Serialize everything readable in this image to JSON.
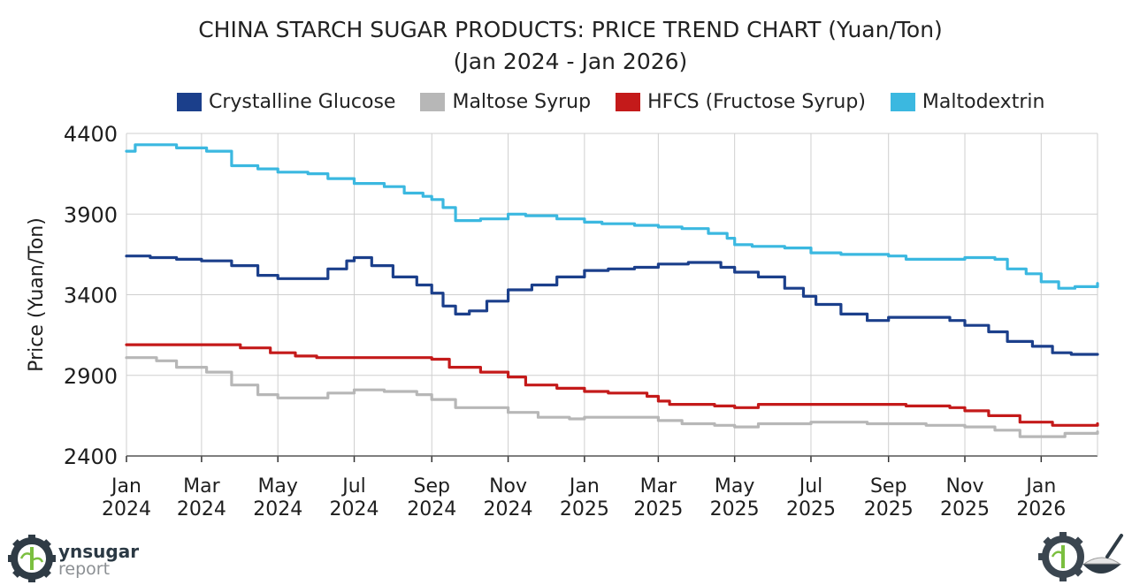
{
  "chart_data": {
    "type": "line",
    "title": "CHINA STARCH SUGAR PRODUCTS: PRICE TREND CHART (Yuan/Ton)",
    "subtitle": "(Jan 2024 - Jan 2026)",
    "xlabel": "",
    "ylabel": "Price (Yuan/Ton)",
    "ylim": [
      2400,
      4400
    ],
    "yticks": [
      2400,
      2900,
      3400,
      3900,
      4400
    ],
    "xlim": [
      "2024-01-01",
      "2026-02-15"
    ],
    "xticks": [
      {
        "date": "2024-01-01",
        "month": "Jan",
        "year": "2024"
      },
      {
        "date": "2024-03-01",
        "month": "Mar",
        "year": "2024"
      },
      {
        "date": "2024-05-01",
        "month": "May",
        "year": "2024"
      },
      {
        "date": "2024-07-01",
        "month": "Jul",
        "year": "2024"
      },
      {
        "date": "2024-09-01",
        "month": "Sep",
        "year": "2024"
      },
      {
        "date": "2024-11-01",
        "month": "Nov",
        "year": "2024"
      },
      {
        "date": "2025-01-01",
        "month": "Jan",
        "year": "2025"
      },
      {
        "date": "2025-03-01",
        "month": "Mar",
        "year": "2025"
      },
      {
        "date": "2025-05-01",
        "month": "May",
        "year": "2025"
      },
      {
        "date": "2025-07-01",
        "month": "Jul",
        "year": "2025"
      },
      {
        "date": "2025-09-01",
        "month": "Sep",
        "year": "2025"
      },
      {
        "date": "2025-11-01",
        "month": "Nov",
        "year": "2025"
      },
      {
        "date": "2026-01-01",
        "month": "Jan",
        "year": "2026"
      }
    ],
    "grid": true,
    "legend_position": "top",
    "series": [
      {
        "name": "Crystalline Glucose",
        "color": "#1b3f8b",
        "points": [
          [
            "2024-01-01",
            3640
          ],
          [
            "2024-01-20",
            3630
          ],
          [
            "2024-02-10",
            3620
          ],
          [
            "2024-03-01",
            3610
          ],
          [
            "2024-03-25",
            3580
          ],
          [
            "2024-04-15",
            3520
          ],
          [
            "2024-05-01",
            3500
          ],
          [
            "2024-05-25",
            3500
          ],
          [
            "2024-06-10",
            3560
          ],
          [
            "2024-06-25",
            3610
          ],
          [
            "2024-07-01",
            3630
          ],
          [
            "2024-07-15",
            3580
          ],
          [
            "2024-08-01",
            3510
          ],
          [
            "2024-08-20",
            3460
          ],
          [
            "2024-09-01",
            3410
          ],
          [
            "2024-09-10",
            3330
          ],
          [
            "2024-09-20",
            3280
          ],
          [
            "2024-10-01",
            3300
          ],
          [
            "2024-10-15",
            3360
          ],
          [
            "2024-11-01",
            3430
          ],
          [
            "2024-11-20",
            3460
          ],
          [
            "2024-12-10",
            3510
          ],
          [
            "2025-01-01",
            3550
          ],
          [
            "2025-01-20",
            3560
          ],
          [
            "2025-02-10",
            3570
          ],
          [
            "2025-03-01",
            3590
          ],
          [
            "2025-03-25",
            3600
          ],
          [
            "2025-04-20",
            3570
          ],
          [
            "2025-05-01",
            3540
          ],
          [
            "2025-05-20",
            3510
          ],
          [
            "2025-06-10",
            3440
          ],
          [
            "2025-06-25",
            3390
          ],
          [
            "2025-07-05",
            3340
          ],
          [
            "2025-07-25",
            3280
          ],
          [
            "2025-08-15",
            3240
          ],
          [
            "2025-09-01",
            3260
          ],
          [
            "2025-09-25",
            3260
          ],
          [
            "2025-10-20",
            3240
          ],
          [
            "2025-11-01",
            3210
          ],
          [
            "2025-11-20",
            3170
          ],
          [
            "2025-12-05",
            3110
          ],
          [
            "2025-12-25",
            3080
          ],
          [
            "2026-01-10",
            3040
          ],
          [
            "2026-01-25",
            3030
          ],
          [
            "2026-02-15",
            3030
          ]
        ]
      },
      {
        "name": "Maltose Syrup",
        "color": "#b7b7b7",
        "points": [
          [
            "2024-01-01",
            3010
          ],
          [
            "2024-01-25",
            2990
          ],
          [
            "2024-02-10",
            2950
          ],
          [
            "2024-03-05",
            2920
          ],
          [
            "2024-03-25",
            2840
          ],
          [
            "2024-04-15",
            2780
          ],
          [
            "2024-05-01",
            2760
          ],
          [
            "2024-05-25",
            2760
          ],
          [
            "2024-06-10",
            2790
          ],
          [
            "2024-07-01",
            2810
          ],
          [
            "2024-07-25",
            2800
          ],
          [
            "2024-08-20",
            2780
          ],
          [
            "2024-09-01",
            2750
          ],
          [
            "2024-09-20",
            2700
          ],
          [
            "2024-10-10",
            2700
          ],
          [
            "2024-11-01",
            2670
          ],
          [
            "2024-11-25",
            2640
          ],
          [
            "2024-12-20",
            2630
          ],
          [
            "2025-01-01",
            2640
          ],
          [
            "2025-02-10",
            2640
          ],
          [
            "2025-03-01",
            2620
          ],
          [
            "2025-03-20",
            2600
          ],
          [
            "2025-04-15",
            2590
          ],
          [
            "2025-05-01",
            2580
          ],
          [
            "2025-05-20",
            2600
          ],
          [
            "2025-06-20",
            2600
          ],
          [
            "2025-07-01",
            2610
          ],
          [
            "2025-08-15",
            2600
          ],
          [
            "2025-09-01",
            2600
          ],
          [
            "2025-10-01",
            2590
          ],
          [
            "2025-11-01",
            2580
          ],
          [
            "2025-11-25",
            2560
          ],
          [
            "2025-12-15",
            2520
          ],
          [
            "2026-01-10",
            2520
          ],
          [
            "2026-01-20",
            2540
          ],
          [
            "2026-02-15",
            2550
          ]
        ]
      },
      {
        "name": "HFCS (Fructose Syrup)",
        "color": "#c41a1a",
        "points": [
          [
            "2024-01-01",
            3090
          ],
          [
            "2024-02-10",
            3090
          ],
          [
            "2024-03-01",
            3090
          ],
          [
            "2024-04-01",
            3070
          ],
          [
            "2024-04-25",
            3040
          ],
          [
            "2024-05-15",
            3020
          ],
          [
            "2024-06-01",
            3010
          ],
          [
            "2024-07-01",
            3010
          ],
          [
            "2024-08-01",
            3010
          ],
          [
            "2024-09-01",
            3000
          ],
          [
            "2024-09-15",
            2950
          ],
          [
            "2024-10-10",
            2920
          ],
          [
            "2024-11-01",
            2890
          ],
          [
            "2024-11-15",
            2840
          ],
          [
            "2024-12-10",
            2820
          ],
          [
            "2025-01-01",
            2800
          ],
          [
            "2025-01-20",
            2790
          ],
          [
            "2025-02-20",
            2770
          ],
          [
            "2025-03-01",
            2740
          ],
          [
            "2025-03-10",
            2720
          ],
          [
            "2025-04-15",
            2710
          ],
          [
            "2025-05-01",
            2700
          ],
          [
            "2025-05-20",
            2720
          ],
          [
            "2025-07-01",
            2720
          ],
          [
            "2025-09-01",
            2720
          ],
          [
            "2025-09-15",
            2710
          ],
          [
            "2025-10-20",
            2700
          ],
          [
            "2025-11-01",
            2680
          ],
          [
            "2025-11-20",
            2650
          ],
          [
            "2025-12-15",
            2610
          ],
          [
            "2026-01-10",
            2590
          ],
          [
            "2026-02-15",
            2600
          ]
        ]
      },
      {
        "name": "Maltodextrin",
        "color": "#3bb8e0",
        "points": [
          [
            "2024-01-01",
            4290
          ],
          [
            "2024-01-08",
            4330
          ],
          [
            "2024-02-10",
            4310
          ],
          [
            "2024-03-05",
            4290
          ],
          [
            "2024-03-25",
            4200
          ],
          [
            "2024-04-15",
            4180
          ],
          [
            "2024-05-01",
            4160
          ],
          [
            "2024-05-25",
            4150
          ],
          [
            "2024-06-10",
            4120
          ],
          [
            "2024-07-01",
            4090
          ],
          [
            "2024-07-25",
            4070
          ],
          [
            "2024-08-10",
            4030
          ],
          [
            "2024-08-25",
            4010
          ],
          [
            "2024-09-01",
            3990
          ],
          [
            "2024-09-10",
            3940
          ],
          [
            "2024-09-20",
            3860
          ],
          [
            "2024-10-10",
            3870
          ],
          [
            "2024-11-01",
            3900
          ],
          [
            "2024-11-15",
            3890
          ],
          [
            "2024-12-10",
            3870
          ],
          [
            "2025-01-01",
            3850
          ],
          [
            "2025-01-15",
            3840
          ],
          [
            "2025-02-10",
            3830
          ],
          [
            "2025-03-01",
            3820
          ],
          [
            "2025-03-20",
            3810
          ],
          [
            "2025-04-10",
            3780
          ],
          [
            "2025-04-25",
            3750
          ],
          [
            "2025-05-01",
            3710
          ],
          [
            "2025-05-15",
            3700
          ],
          [
            "2025-06-10",
            3690
          ],
          [
            "2025-07-01",
            3660
          ],
          [
            "2025-07-25",
            3650
          ],
          [
            "2025-08-20",
            3650
          ],
          [
            "2025-09-01",
            3640
          ],
          [
            "2025-09-15",
            3620
          ],
          [
            "2025-10-25",
            3620
          ],
          [
            "2025-11-01",
            3630
          ],
          [
            "2025-11-25",
            3620
          ],
          [
            "2025-12-05",
            3560
          ],
          [
            "2025-12-20",
            3530
          ],
          [
            "2026-01-01",
            3480
          ],
          [
            "2026-01-15",
            3440
          ],
          [
            "2026-01-28",
            3450
          ],
          [
            "2026-02-15",
            3470
          ]
        ]
      }
    ]
  },
  "branding": {
    "left_logo_name": "ynsugar",
    "left_logo_sub": "report"
  }
}
